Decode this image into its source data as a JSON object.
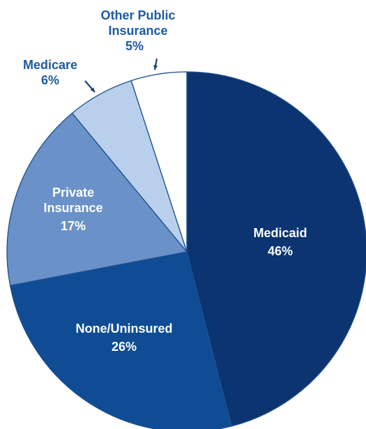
{
  "chart_data": {
    "type": "pie",
    "title": "",
    "slices": [
      {
        "label": "Medicaid",
        "value": 46,
        "value_label": "46%",
        "color": "#0b3470"
      },
      {
        "label": "None/Uninsured",
        "value": 26,
        "value_label": "26%",
        "color": "#0f4c93"
      },
      {
        "label": "Private Insurance",
        "value": 17,
        "value_label": "17%",
        "color": "#6a91c8"
      },
      {
        "label": "Medicare",
        "value": 6,
        "value_label": "6%",
        "color": "#b9d0ec"
      },
      {
        "label": "Other Public Insurance",
        "value": 5,
        "value_label": "5%",
        "color": "#ffffff"
      }
    ],
    "start_at": "top",
    "direction": "clockwise",
    "border_color": "#1f4f8f",
    "outer_label_color": "#1d5aa2"
  }
}
